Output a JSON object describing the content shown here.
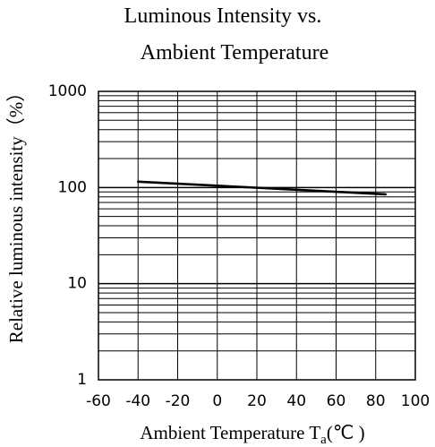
{
  "chart_data": {
    "type": "line",
    "title_line1": "Luminous Intensity vs.",
    "title_line2": "Ambient Temperature",
    "xlabel_main": "Ambient Temperature T",
    "xlabel_sub": "a",
    "xlabel_unit": "(℃ )",
    "ylabel": "Relative luminous intensity（%）",
    "x_ticks": [
      "-60",
      "-40",
      "-20",
      "0",
      "20",
      "40",
      "60",
      "80",
      "100"
    ],
    "y_ticks": [
      "1",
      "10",
      "100",
      "1000"
    ],
    "xlim": [
      -60,
      100
    ],
    "ylim": [
      1,
      1000
    ],
    "y_scale": "log",
    "grid": true,
    "series": [
      {
        "x": [
          -40,
          85
        ],
        "y": [
          115,
          85
        ],
        "color": "#000000"
      }
    ]
  }
}
